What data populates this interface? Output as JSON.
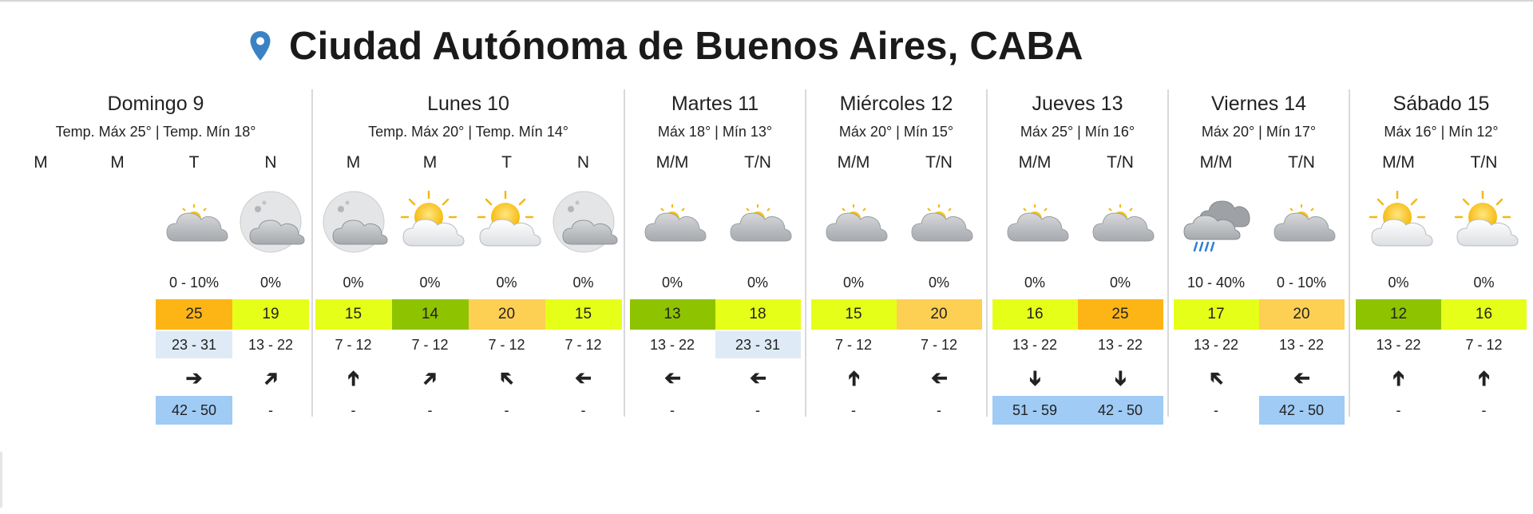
{
  "header": {
    "title": "Ciudad Autónoma de Buenos Aires, CABA",
    "icon": "location-pin-icon",
    "icon_color": "#3b82c4"
  },
  "colors": {
    "yellow": "#e6ff19",
    "green": "#8ec300",
    "orange": "#fdb515",
    "lightorange": "#fdcf52",
    "windlight": "#deebf6",
    "gustblue": "#9fcbf5"
  },
  "days": [
    {
      "name": "Domingo 9",
      "temps": "Temp. Máx 25° | Temp. Mín 18°",
      "slots": [
        {
          "period": "M",
          "icon": "",
          "rain": "",
          "temp": "",
          "wind": "",
          "arrow": "",
          "gust": ""
        },
        {
          "period": "M",
          "icon": "",
          "rain": "",
          "temp": "",
          "wind": "",
          "arrow": "",
          "gust": ""
        },
        {
          "period": "T",
          "icon": "partly-cloudy-icon",
          "rain": "0 - 10%",
          "temp": "25",
          "temp_color": "orange",
          "wind": "23 - 31",
          "wind_bg": "light",
          "arrow": "➔",
          "rot": 0,
          "gust": "42 - 50",
          "gust_bg": "blue"
        },
        {
          "period": "N",
          "icon": "cloudy-night-icon",
          "rain": "0%",
          "temp": "19",
          "temp_color": "yellow",
          "wind": "13 - 22",
          "arrow": "➔",
          "rot": -45,
          "gust": "-"
        }
      ]
    },
    {
      "name": "Lunes 10",
      "temps": "Temp. Máx 20° | Temp. Mín 14°",
      "slots": [
        {
          "period": "M",
          "icon": "cloudy-night-icon",
          "rain": "0%",
          "temp": "15",
          "temp_color": "yellow",
          "wind": "7 - 12",
          "arrow": "➔",
          "rot": -90,
          "gust": "-"
        },
        {
          "period": "M",
          "icon": "sun-cloud-icon",
          "rain": "0%",
          "temp": "14",
          "temp_color": "green",
          "wind": "7 - 12",
          "arrow": "➔",
          "rot": -45,
          "gust": "-"
        },
        {
          "period": "T",
          "icon": "sun-cloud-icon",
          "rain": "0%",
          "temp": "20",
          "temp_color": "lightorange",
          "wind": "7 - 12",
          "arrow": "➔",
          "rot": -135,
          "gust": "-"
        },
        {
          "period": "N",
          "icon": "cloudy-night-icon",
          "rain": "0%",
          "temp": "15",
          "temp_color": "yellow",
          "wind": "7 - 12",
          "arrow": "➔",
          "rot": 180,
          "gust": "-"
        }
      ]
    },
    {
      "name": "Martes 11",
      "temps": "Máx 18° | Mín 13°",
      "slots": [
        {
          "period": "M/M",
          "icon": "partly-cloudy-icon",
          "rain": "0%",
          "temp": "13",
          "temp_color": "green",
          "wind": "13 - 22",
          "arrow": "➔",
          "rot": 180,
          "gust": "-"
        },
        {
          "period": "T/N",
          "icon": "partly-cloudy-icon",
          "rain": "0%",
          "temp": "18",
          "temp_color": "yellow",
          "wind": "23 - 31",
          "wind_bg": "light",
          "arrow": "➔",
          "rot": 180,
          "gust": "-"
        }
      ]
    },
    {
      "name": "Miércoles 12",
      "temps": "Máx 20° | Mín 15°",
      "slots": [
        {
          "period": "M/M",
          "icon": "partly-cloudy-icon",
          "rain": "0%",
          "temp": "15",
          "temp_color": "yellow",
          "wind": "7 - 12",
          "arrow": "➔",
          "rot": -90,
          "gust": "-"
        },
        {
          "period": "T/N",
          "icon": "partly-cloudy-icon",
          "rain": "0%",
          "temp": "20",
          "temp_color": "lightorange",
          "wind": "7 - 12",
          "arrow": "➔",
          "rot": 180,
          "gust": "-"
        }
      ]
    },
    {
      "name": "Jueves 13",
      "temps": "Máx 25° | Mín 16°",
      "slots": [
        {
          "period": "M/M",
          "icon": "partly-cloudy-icon",
          "rain": "0%",
          "temp": "16",
          "temp_color": "yellow",
          "wind": "13 - 22",
          "arrow": "➔",
          "rot": 90,
          "gust": "51 - 59",
          "gust_bg": "blue"
        },
        {
          "period": "T/N",
          "icon": "partly-cloudy-icon",
          "rain": "0%",
          "temp": "25",
          "temp_color": "orange",
          "wind": "13 - 22",
          "arrow": "➔",
          "rot": 90,
          "gust": "42 - 50",
          "gust_bg": "blue"
        }
      ]
    },
    {
      "name": "Viernes 14",
      "temps": "Máx 20° | Mín 17°",
      "slots": [
        {
          "period": "M/M",
          "icon": "rain-cloud-icon",
          "rain": "10 - 40%",
          "temp": "17",
          "temp_color": "yellow",
          "wind": "13 - 22",
          "arrow": "➔",
          "rot": -135,
          "gust": "-"
        },
        {
          "period": "T/N",
          "icon": "partly-cloudy-icon",
          "rain": "0 - 10%",
          "temp": "20",
          "temp_color": "lightorange",
          "wind": "13 - 22",
          "arrow": "➔",
          "rot": 180,
          "gust": "42 - 50",
          "gust_bg": "blue"
        }
      ]
    },
    {
      "name": "Sábado 15",
      "temps": "Máx 16° | Mín 12°",
      "slots": [
        {
          "period": "M/M",
          "icon": "sun-cloud-icon",
          "rain": "0%",
          "temp": "12",
          "temp_color": "green",
          "wind": "13 - 22",
          "arrow": "➔",
          "rot": -90,
          "gust": "-"
        },
        {
          "period": "T/N",
          "icon": "sun-cloud-icon",
          "rain": "0%",
          "temp": "16",
          "temp_color": "yellow",
          "wind": "7 - 12",
          "arrow": "➔",
          "rot": -90,
          "gust": "-"
        }
      ]
    }
  ]
}
